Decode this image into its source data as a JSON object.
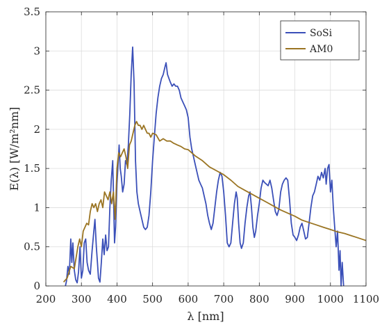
{
  "chart_data": {
    "type": "line",
    "xlabel": "λ [nm]",
    "ylabel": "E(λ) [W/m²nm]",
    "xlim": [
      200,
      1100
    ],
    "ylim": [
      0,
      3.5
    ],
    "xticks": [
      200,
      300,
      400,
      500,
      600,
      700,
      800,
      900,
      1000,
      1100
    ],
    "yticks": [
      0,
      0.5,
      1,
      1.5,
      2,
      2.5,
      3,
      3.5
    ],
    "grid": true,
    "legend_position": "top-right",
    "series": [
      {
        "name": "SoSi",
        "color": "#3a4fb8",
        "points": [
          [
            255,
            0
          ],
          [
            258,
            0.06
          ],
          [
            262,
            0.25
          ],
          [
            266,
            0.15
          ],
          [
            270,
            0.6
          ],
          [
            273,
            0.3
          ],
          [
            276,
            0.55
          ],
          [
            280,
            0.2
          ],
          [
            284,
            0.08
          ],
          [
            288,
            0.04
          ],
          [
            292,
            0.18
          ],
          [
            296,
            0.5
          ],
          [
            300,
            0.1
          ],
          [
            304,
            0.2
          ],
          [
            308,
            0.55
          ],
          [
            312,
            0.6
          ],
          [
            316,
            0.3
          ],
          [
            320,
            0.2
          ],
          [
            325,
            0.15
          ],
          [
            330,
            0.45
          ],
          [
            335,
            0.7
          ],
          [
            338,
            0.85
          ],
          [
            342,
            0.5
          ],
          [
            345,
            0.3
          ],
          [
            348,
            0.1
          ],
          [
            352,
            0.05
          ],
          [
            356,
            0.3
          ],
          [
            360,
            0.6
          ],
          [
            364,
            0.4
          ],
          [
            368,
            0.65
          ],
          [
            372,
            0.45
          ],
          [
            376,
            0.5
          ],
          [
            380,
            1.0
          ],
          [
            384,
            1.35
          ],
          [
            388,
            1.6
          ],
          [
            390,
            1.2
          ],
          [
            393,
            0.55
          ],
          [
            396,
            0.75
          ],
          [
            400,
            1.3
          ],
          [
            403,
            1.55
          ],
          [
            406,
            1.8
          ],
          [
            409,
            1.5
          ],
          [
            412,
            1.4
          ],
          [
            416,
            1.2
          ],
          [
            420,
            1.3
          ],
          [
            424,
            1.6
          ],
          [
            428,
            1.55
          ],
          [
            432,
            1.8
          ],
          [
            436,
            2.2
          ],
          [
            440,
            2.7
          ],
          [
            444,
            3.05
          ],
          [
            448,
            2.6
          ],
          [
            452,
            1.6
          ],
          [
            456,
            1.2
          ],
          [
            460,
            1.05
          ],
          [
            465,
            0.95
          ],
          [
            470,
            0.85
          ],
          [
            475,
            0.75
          ],
          [
            480,
            0.72
          ],
          [
            485,
            0.75
          ],
          [
            490,
            0.9
          ],
          [
            495,
            1.2
          ],
          [
            500,
            1.6
          ],
          [
            505,
            1.9
          ],
          [
            510,
            2.2
          ],
          [
            515,
            2.4
          ],
          [
            520,
            2.55
          ],
          [
            525,
            2.65
          ],
          [
            530,
            2.7
          ],
          [
            535,
            2.8
          ],
          [
            538,
            2.85
          ],
          [
            542,
            2.7
          ],
          [
            546,
            2.65
          ],
          [
            550,
            2.6
          ],
          [
            555,
            2.55
          ],
          [
            560,
            2.58
          ],
          [
            565,
            2.55
          ],
          [
            570,
            2.55
          ],
          [
            575,
            2.5
          ],
          [
            580,
            2.4
          ],
          [
            585,
            2.35
          ],
          [
            590,
            2.3
          ],
          [
            595,
            2.25
          ],
          [
            600,
            2.15
          ],
          [
            605,
            1.9
          ],
          [
            610,
            1.75
          ],
          [
            615,
            1.65
          ],
          [
            620,
            1.55
          ],
          [
            625,
            1.45
          ],
          [
            630,
            1.35
          ],
          [
            635,
            1.3
          ],
          [
            640,
            1.25
          ],
          [
            645,
            1.15
          ],
          [
            650,
            1.05
          ],
          [
            655,
            0.9
          ],
          [
            660,
            0.8
          ],
          [
            665,
            0.72
          ],
          [
            670,
            0.8
          ],
          [
            675,
            1.0
          ],
          [
            680,
            1.2
          ],
          [
            685,
            1.35
          ],
          [
            690,
            1.45
          ],
          [
            695,
            1.4
          ],
          [
            700,
            1.2
          ],
          [
            705,
            0.9
          ],
          [
            710,
            0.55
          ],
          [
            715,
            0.5
          ],
          [
            720,
            0.55
          ],
          [
            725,
            0.8
          ],
          [
            730,
            1.05
          ],
          [
            735,
            1.2
          ],
          [
            738,
            1.12
          ],
          [
            742,
            0.8
          ],
          [
            746,
            0.55
          ],
          [
            750,
            0.48
          ],
          [
            755,
            0.55
          ],
          [
            760,
            0.8
          ],
          [
            765,
            1.0
          ],
          [
            770,
            1.15
          ],
          [
            774,
            1.2
          ],
          [
            778,
            1.0
          ],
          [
            782,
            0.75
          ],
          [
            786,
            0.62
          ],
          [
            790,
            0.7
          ],
          [
            795,
            0.9
          ],
          [
            800,
            1.05
          ],
          [
            805,
            1.25
          ],
          [
            810,
            1.35
          ],
          [
            815,
            1.32
          ],
          [
            820,
            1.3
          ],
          [
            825,
            1.28
          ],
          [
            830,
            1.35
          ],
          [
            835,
            1.25
          ],
          [
            840,
            1.1
          ],
          [
            845,
            0.95
          ],
          [
            850,
            0.9
          ],
          [
            855,
            0.98
          ],
          [
            860,
            1.2
          ],
          [
            865,
            1.3
          ],
          [
            870,
            1.35
          ],
          [
            875,
            1.38
          ],
          [
            880,
            1.35
          ],
          [
            885,
            1.1
          ],
          [
            890,
            0.8
          ],
          [
            895,
            0.65
          ],
          [
            900,
            0.62
          ],
          [
            905,
            0.58
          ],
          [
            910,
            0.65
          ],
          [
            915,
            0.75
          ],
          [
            920,
            0.8
          ],
          [
            925,
            0.7
          ],
          [
            930,
            0.6
          ],
          [
            935,
            0.62
          ],
          [
            940,
            0.8
          ],
          [
            945,
            1.0
          ],
          [
            950,
            1.15
          ],
          [
            955,
            1.2
          ],
          [
            960,
            1.3
          ],
          [
            965,
            1.4
          ],
          [
            970,
            1.35
          ],
          [
            975,
            1.45
          ],
          [
            980,
            1.38
          ],
          [
            985,
            1.5
          ],
          [
            988,
            1.3
          ],
          [
            992,
            1.5
          ],
          [
            996,
            1.55
          ],
          [
            1000,
            1.2
          ],
          [
            1004,
            1.35
          ],
          [
            1008,
            1.0
          ],
          [
            1012,
            0.75
          ],
          [
            1016,
            0.5
          ],
          [
            1020,
            0.7
          ],
          [
            1024,
            0.2
          ],
          [
            1027,
            0.45
          ],
          [
            1030,
            0
          ],
          [
            1033,
            0.3
          ],
          [
            1037,
            0
          ]
        ]
      },
      {
        "name": "AM0",
        "color": "#9a7422",
        "points": [
          [
            250,
            0.05
          ],
          [
            260,
            0.1
          ],
          [
            270,
            0.25
          ],
          [
            280,
            0.22
          ],
          [
            290,
            0.5
          ],
          [
            295,
            0.6
          ],
          [
            300,
            0.5
          ],
          [
            305,
            0.7
          ],
          [
            310,
            0.75
          ],
          [
            315,
            0.8
          ],
          [
            320,
            0.78
          ],
          [
            325,
            0.95
          ],
          [
            330,
            1.05
          ],
          [
            335,
            1.0
          ],
          [
            340,
            1.05
          ],
          [
            345,
            0.95
          ],
          [
            350,
            1.05
          ],
          [
            355,
            1.1
          ],
          [
            360,
            1.0
          ],
          [
            365,
            1.2
          ],
          [
            370,
            1.15
          ],
          [
            375,
            1.1
          ],
          [
            380,
            1.2
          ],
          [
            385,
            1.05
          ],
          [
            390,
            1.2
          ],
          [
            395,
            0.85
          ],
          [
            400,
            1.5
          ],
          [
            405,
            1.7
          ],
          [
            410,
            1.65
          ],
          [
            415,
            1.7
          ],
          [
            420,
            1.75
          ],
          [
            425,
            1.65
          ],
          [
            430,
            1.5
          ],
          [
            435,
            1.8
          ],
          [
            440,
            1.85
          ],
          [
            445,
            1.95
          ],
          [
            450,
            2.05
          ],
          [
            455,
            2.1
          ],
          [
            460,
            2.05
          ],
          [
            465,
            2.05
          ],
          [
            470,
            2.0
          ],
          [
            475,
            2.05
          ],
          [
            480,
            2.0
          ],
          [
            485,
            1.95
          ],
          [
            490,
            1.95
          ],
          [
            495,
            1.9
          ],
          [
            500,
            1.95
          ],
          [
            510,
            1.93
          ],
          [
            520,
            1.85
          ],
          [
            530,
            1.88
          ],
          [
            540,
            1.85
          ],
          [
            550,
            1.85
          ],
          [
            560,
            1.82
          ],
          [
            570,
            1.8
          ],
          [
            580,
            1.78
          ],
          [
            590,
            1.75
          ],
          [
            600,
            1.74
          ],
          [
            620,
            1.66
          ],
          [
            640,
            1.6
          ],
          [
            660,
            1.52
          ],
          [
            680,
            1.47
          ],
          [
            700,
            1.42
          ],
          [
            720,
            1.35
          ],
          [
            740,
            1.27
          ],
          [
            760,
            1.22
          ],
          [
            780,
            1.17
          ],
          [
            800,
            1.12
          ],
          [
            820,
            1.07
          ],
          [
            840,
            1.02
          ],
          [
            860,
            0.97
          ],
          [
            880,
            0.93
          ],
          [
            900,
            0.89
          ],
          [
            920,
            0.84
          ],
          [
            940,
            0.81
          ],
          [
            960,
            0.78
          ],
          [
            980,
            0.75
          ],
          [
            1000,
            0.72
          ],
          [
            1020,
            0.69
          ],
          [
            1040,
            0.67
          ],
          [
            1060,
            0.64
          ],
          [
            1080,
            0.61
          ],
          [
            1100,
            0.58
          ]
        ]
      }
    ]
  }
}
